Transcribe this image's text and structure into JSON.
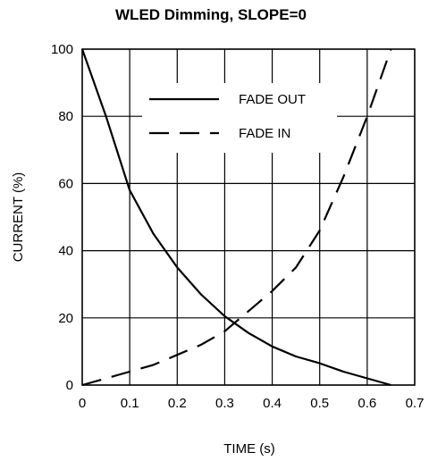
{
  "chart_data": {
    "type": "line",
    "title": "WLED Dimming, SLOPE=0",
    "xlabel": "TIME (s)",
    "ylabel": "CURRENT (%)",
    "xlim": [
      0,
      0.7
    ],
    "ylim": [
      0,
      100
    ],
    "xticks": [
      "0",
      "0.1",
      "0.2",
      "0.3",
      "0.4",
      "0.5",
      "0.6",
      "0.7"
    ],
    "yticks": [
      "0",
      "20",
      "40",
      "60",
      "80",
      "100"
    ],
    "grid": true,
    "legend_position": "top-center",
    "series": [
      {
        "name": "FADE OUT",
        "style": "solid",
        "color": "#000000",
        "points": [
          [
            0,
            100
          ],
          [
            0.05,
            80
          ],
          [
            0.1,
            58
          ],
          [
            0.15,
            45
          ],
          [
            0.2,
            35
          ],
          [
            0.25,
            27
          ],
          [
            0.3,
            20.5
          ],
          [
            0.35,
            15.5
          ],
          [
            0.4,
            11.5
          ],
          [
            0.45,
            8.5
          ],
          [
            0.5,
            6.5
          ],
          [
            0.55,
            4
          ],
          [
            0.6,
            2
          ],
          [
            0.65,
            0
          ]
        ]
      },
      {
        "name": "FADE IN",
        "style": "dashed",
        "color": "#000000",
        "points": [
          [
            0,
            0
          ],
          [
            0.05,
            2
          ],
          [
            0.1,
            4
          ],
          [
            0.15,
            6
          ],
          [
            0.2,
            9
          ],
          [
            0.25,
            12
          ],
          [
            0.3,
            16
          ],
          [
            0.35,
            22
          ],
          [
            0.4,
            28
          ],
          [
            0.45,
            35
          ],
          [
            0.5,
            46
          ],
          [
            0.55,
            62
          ],
          [
            0.6,
            80
          ],
          [
            0.65,
            100
          ]
        ]
      }
    ]
  }
}
